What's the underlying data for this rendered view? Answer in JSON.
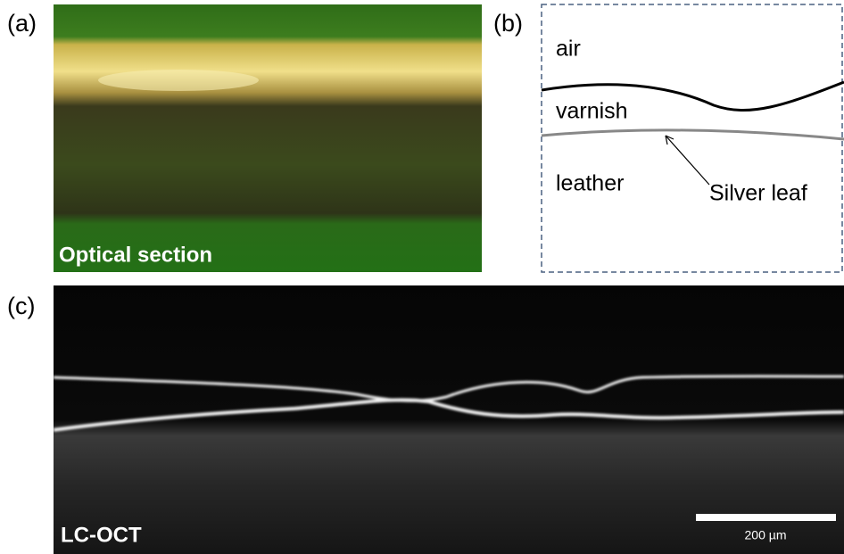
{
  "panels": [
    {
      "label": "(a)",
      "caption": "Optical section"
    },
    {
      "label": "(b)",
      "layers": [
        "air",
        "varnish",
        "leather"
      ],
      "annotation": "Silver leaf"
    },
    {
      "label": "(c)",
      "caption": "LC-OCT",
      "scale_bar": "200 µm"
    }
  ]
}
